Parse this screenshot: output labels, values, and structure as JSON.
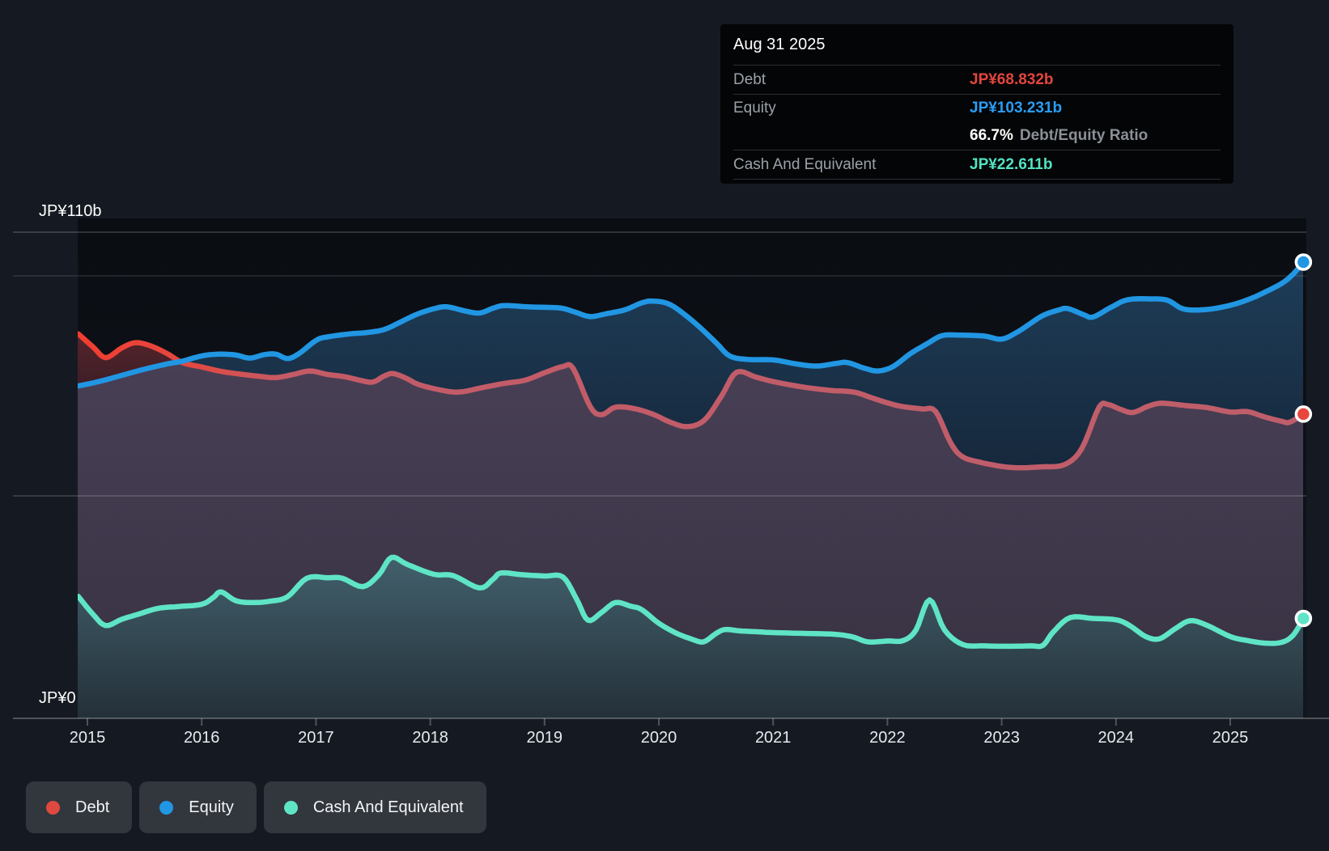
{
  "tooltip": {
    "date": "Aug 31 2025",
    "debt_label": "Debt",
    "debt_value": "JP¥68.832b",
    "equity_label": "Equity",
    "equity_value": "JP¥103.231b",
    "ratio_value": "66.7%",
    "ratio_label": "Debt/Equity Ratio",
    "cash_label": "Cash And Equivalent",
    "cash_value": "JP¥22.611b"
  },
  "axis": {
    "y_top_label": "JP¥110b",
    "y_zero_label": "JP¥0",
    "years": [
      "2015",
      "2016",
      "2017",
      "2018",
      "2019",
      "2020",
      "2021",
      "2022",
      "2023",
      "2024",
      "2025"
    ]
  },
  "legend": [
    {
      "label": "Debt",
      "color": "#E0493F"
    },
    {
      "label": "Equity",
      "color": "#2196E3"
    },
    {
      "label": "Cash And Equivalent",
      "color": "#5FE5C6"
    }
  ],
  "colors": {
    "page_bg": "#151A22",
    "plot_bg_top": "#0A0D12",
    "plot_bg_bottom": "#11161E",
    "debt_line": "#BF5E6B",
    "debt_line_start": "#F23D30",
    "equity_line": "#2196E3",
    "cash_line": "#5FE5C6",
    "debt_value_text": "#E2463D",
    "equity_value_text": "#2A9DF4",
    "cash_value_text": "#52E3C2",
    "maroon_fill": "#55242B",
    "blue_fill": "#1E3D58",
    "purple_fill": "#483F55",
    "teal_fill": "#42606C"
  },
  "chart_data": {
    "type": "area",
    "title": "",
    "xlabel": "",
    "ylabel": "JP¥ billions",
    "x_range": [
      2014.92,
      2025.665
    ],
    "ylim": [
      0,
      110
    ],
    "gridlines_b": [
      110,
      100,
      50,
      0
    ],
    "legend_position": "bottom-left",
    "marker_date": "Aug 31 2025",
    "series": [
      {
        "name": "Debt",
        "color": "#BF5E6B",
        "end_value": 68.832,
        "points": [
          [
            2014.92,
            87.0
          ],
          [
            2015.05,
            84.0
          ],
          [
            2015.16,
            81.6
          ],
          [
            2015.3,
            83.8
          ],
          [
            2015.42,
            85.0
          ],
          [
            2015.55,
            84.3
          ],
          [
            2015.7,
            82.5
          ],
          [
            2015.83,
            80.5
          ],
          [
            2016.0,
            79.5
          ],
          [
            2016.15,
            78.6
          ],
          [
            2016.3,
            78.0
          ],
          [
            2016.5,
            77.4
          ],
          [
            2016.65,
            77.1
          ],
          [
            2016.8,
            77.8
          ],
          [
            2016.95,
            78.6
          ],
          [
            2017.1,
            77.8
          ],
          [
            2017.25,
            77.3
          ],
          [
            2017.4,
            76.4
          ],
          [
            2017.5,
            76.1
          ],
          [
            2017.6,
            77.5
          ],
          [
            2017.68,
            78.0
          ],
          [
            2017.8,
            76.8
          ],
          [
            2017.89,
            75.6
          ],
          [
            2018.05,
            74.5
          ],
          [
            2018.24,
            73.8
          ],
          [
            2018.45,
            74.8
          ],
          [
            2018.65,
            75.8
          ],
          [
            2018.83,
            76.5
          ],
          [
            2019.0,
            78.2
          ],
          [
            2019.16,
            79.6
          ],
          [
            2019.25,
            79.2
          ],
          [
            2019.4,
            70.5
          ],
          [
            2019.5,
            68.7
          ],
          [
            2019.62,
            70.4
          ],
          [
            2019.78,
            70.1
          ],
          [
            2019.95,
            68.8
          ],
          [
            2020.1,
            67.0
          ],
          [
            2020.25,
            66.0
          ],
          [
            2020.4,
            67.5
          ],
          [
            2020.55,
            73.0
          ],
          [
            2020.68,
            78.3
          ],
          [
            2020.85,
            77.2
          ],
          [
            2021.0,
            76.2
          ],
          [
            2021.25,
            75.0
          ],
          [
            2021.5,
            74.2
          ],
          [
            2021.71,
            73.8
          ],
          [
            2021.9,
            72.2
          ],
          [
            2022.1,
            70.7
          ],
          [
            2022.3,
            70.0
          ],
          [
            2022.42,
            69.5
          ],
          [
            2022.55,
            62.5
          ],
          [
            2022.65,
            59.3
          ],
          [
            2022.8,
            58.0
          ],
          [
            2023.0,
            57.0
          ],
          [
            2023.15,
            56.7
          ],
          [
            2023.35,
            56.9
          ],
          [
            2023.55,
            57.4
          ],
          [
            2023.7,
            61.0
          ],
          [
            2023.85,
            70.3
          ],
          [
            2023.93,
            71.0
          ],
          [
            2024.05,
            69.8
          ],
          [
            2024.15,
            69.2
          ],
          [
            2024.28,
            70.6
          ],
          [
            2024.4,
            71.3
          ],
          [
            2024.6,
            70.8
          ],
          [
            2024.8,
            70.3
          ],
          [
            2025.0,
            69.3
          ],
          [
            2025.15,
            69.4
          ],
          [
            2025.3,
            68.2
          ],
          [
            2025.45,
            67.2
          ],
          [
            2025.52,
            67.0
          ],
          [
            2025.64,
            68.832
          ]
        ]
      },
      {
        "name": "Equity",
        "color": "#2196E3",
        "end_value": 103.231,
        "points": [
          [
            2014.92,
            75.2
          ],
          [
            2015.1,
            76.2
          ],
          [
            2015.3,
            77.6
          ],
          [
            2015.5,
            79.0
          ],
          [
            2015.7,
            80.2
          ],
          [
            2015.83,
            80.8
          ],
          [
            2016.0,
            82.0
          ],
          [
            2016.15,
            82.4
          ],
          [
            2016.3,
            82.2
          ],
          [
            2016.42,
            81.5
          ],
          [
            2016.55,
            82.3
          ],
          [
            2016.65,
            82.4
          ],
          [
            2016.75,
            81.4
          ],
          [
            2016.85,
            82.5
          ],
          [
            2017.0,
            85.5
          ],
          [
            2017.1,
            86.3
          ],
          [
            2017.3,
            87.0
          ],
          [
            2017.45,
            87.3
          ],
          [
            2017.6,
            88.0
          ],
          [
            2017.75,
            89.8
          ],
          [
            2017.89,
            91.5
          ],
          [
            2018.05,
            92.8
          ],
          [
            2018.15,
            93.1
          ],
          [
            2018.3,
            92.2
          ],
          [
            2018.43,
            91.7
          ],
          [
            2018.55,
            92.8
          ],
          [
            2018.65,
            93.4
          ],
          [
            2018.85,
            93.1
          ],
          [
            2019.0,
            93.0
          ],
          [
            2019.15,
            92.8
          ],
          [
            2019.28,
            91.8
          ],
          [
            2019.4,
            90.9
          ],
          [
            2019.55,
            91.6
          ],
          [
            2019.7,
            92.4
          ],
          [
            2019.85,
            94.0
          ],
          [
            2019.95,
            94.4
          ],
          [
            2020.1,
            93.6
          ],
          [
            2020.3,
            89.8
          ],
          [
            2020.5,
            85.0
          ],
          [
            2020.62,
            82.0
          ],
          [
            2020.78,
            81.2
          ],
          [
            2021.0,
            81.1
          ],
          [
            2021.2,
            80.2
          ],
          [
            2021.38,
            79.7
          ],
          [
            2021.55,
            80.3
          ],
          [
            2021.65,
            80.5
          ],
          [
            2021.8,
            79.2
          ],
          [
            2021.92,
            78.6
          ],
          [
            2022.05,
            79.6
          ],
          [
            2022.2,
            82.5
          ],
          [
            2022.35,
            84.8
          ],
          [
            2022.48,
            86.6
          ],
          [
            2022.65,
            86.7
          ],
          [
            2022.85,
            86.5
          ],
          [
            2023.0,
            85.8
          ],
          [
            2023.15,
            87.6
          ],
          [
            2023.35,
            91.0
          ],
          [
            2023.5,
            92.4
          ],
          [
            2023.58,
            92.7
          ],
          [
            2023.72,
            91.3
          ],
          [
            2023.8,
            90.8
          ],
          [
            2023.95,
            92.9
          ],
          [
            2024.1,
            94.7
          ],
          [
            2024.3,
            94.9
          ],
          [
            2024.45,
            94.6
          ],
          [
            2024.58,
            92.7
          ],
          [
            2024.72,
            92.4
          ],
          [
            2024.88,
            92.8
          ],
          [
            2025.05,
            93.8
          ],
          [
            2025.2,
            95.2
          ],
          [
            2025.3,
            96.4
          ],
          [
            2025.45,
            98.4
          ],
          [
            2025.55,
            100.5
          ],
          [
            2025.64,
            103.231
          ]
        ]
      },
      {
        "name": "Cash And Equivalent",
        "color": "#5FE5C6",
        "end_value": 22.611,
        "points": [
          [
            2014.92,
            27.6
          ],
          [
            2015.05,
            23.5
          ],
          [
            2015.16,
            21.0
          ],
          [
            2015.3,
            22.4
          ],
          [
            2015.45,
            23.6
          ],
          [
            2015.62,
            24.9
          ],
          [
            2015.8,
            25.3
          ],
          [
            2016.0,
            25.8
          ],
          [
            2016.1,
            27.3
          ],
          [
            2016.17,
            28.6
          ],
          [
            2016.3,
            26.6
          ],
          [
            2016.45,
            26.2
          ],
          [
            2016.6,
            26.5
          ],
          [
            2016.75,
            27.5
          ],
          [
            2016.92,
            31.7
          ],
          [
            2017.1,
            31.8
          ],
          [
            2017.23,
            31.7
          ],
          [
            2017.41,
            29.8
          ],
          [
            2017.55,
            32.5
          ],
          [
            2017.66,
            36.4
          ],
          [
            2017.8,
            34.8
          ],
          [
            2018.03,
            32.6
          ],
          [
            2018.2,
            32.3
          ],
          [
            2018.43,
            29.5
          ],
          [
            2018.55,
            31.5
          ],
          [
            2018.62,
            32.9
          ],
          [
            2018.8,
            32.5
          ],
          [
            2019.0,
            32.2
          ],
          [
            2019.16,
            32.0
          ],
          [
            2019.28,
            27.0
          ],
          [
            2019.38,
            22.2
          ],
          [
            2019.5,
            24.0
          ],
          [
            2019.62,
            26.2
          ],
          [
            2019.75,
            25.4
          ],
          [
            2019.85,
            24.6
          ],
          [
            2020.0,
            21.5
          ],
          [
            2020.15,
            19.3
          ],
          [
            2020.28,
            18.0
          ],
          [
            2020.39,
            17.3
          ],
          [
            2020.5,
            19.2
          ],
          [
            2020.58,
            20.1
          ],
          [
            2020.7,
            19.8
          ],
          [
            2020.85,
            19.6
          ],
          [
            2021.0,
            19.4
          ],
          [
            2021.3,
            19.2
          ],
          [
            2021.55,
            19.0
          ],
          [
            2021.7,
            18.4
          ],
          [
            2021.83,
            17.3
          ],
          [
            2022.0,
            17.5
          ],
          [
            2022.14,
            17.6
          ],
          [
            2022.25,
            20.0
          ],
          [
            2022.37,
            26.8
          ],
          [
            2022.5,
            20.0
          ],
          [
            2022.66,
            16.7
          ],
          [
            2022.85,
            16.4
          ],
          [
            2023.05,
            16.3
          ],
          [
            2023.25,
            16.4
          ],
          [
            2023.36,
            16.5
          ],
          [
            2023.45,
            19.5
          ],
          [
            2023.6,
            22.8
          ],
          [
            2023.8,
            22.6
          ],
          [
            2024.0,
            22.3
          ],
          [
            2024.12,
            21.0
          ],
          [
            2024.26,
            18.5
          ],
          [
            2024.38,
            18.0
          ],
          [
            2024.52,
            20.3
          ],
          [
            2024.65,
            22.1
          ],
          [
            2024.8,
            21.0
          ],
          [
            2025.0,
            18.5
          ],
          [
            2025.15,
            17.6
          ],
          [
            2025.31,
            17.0
          ],
          [
            2025.45,
            17.2
          ],
          [
            2025.55,
            18.8
          ],
          [
            2025.64,
            22.611
          ]
        ]
      }
    ]
  }
}
